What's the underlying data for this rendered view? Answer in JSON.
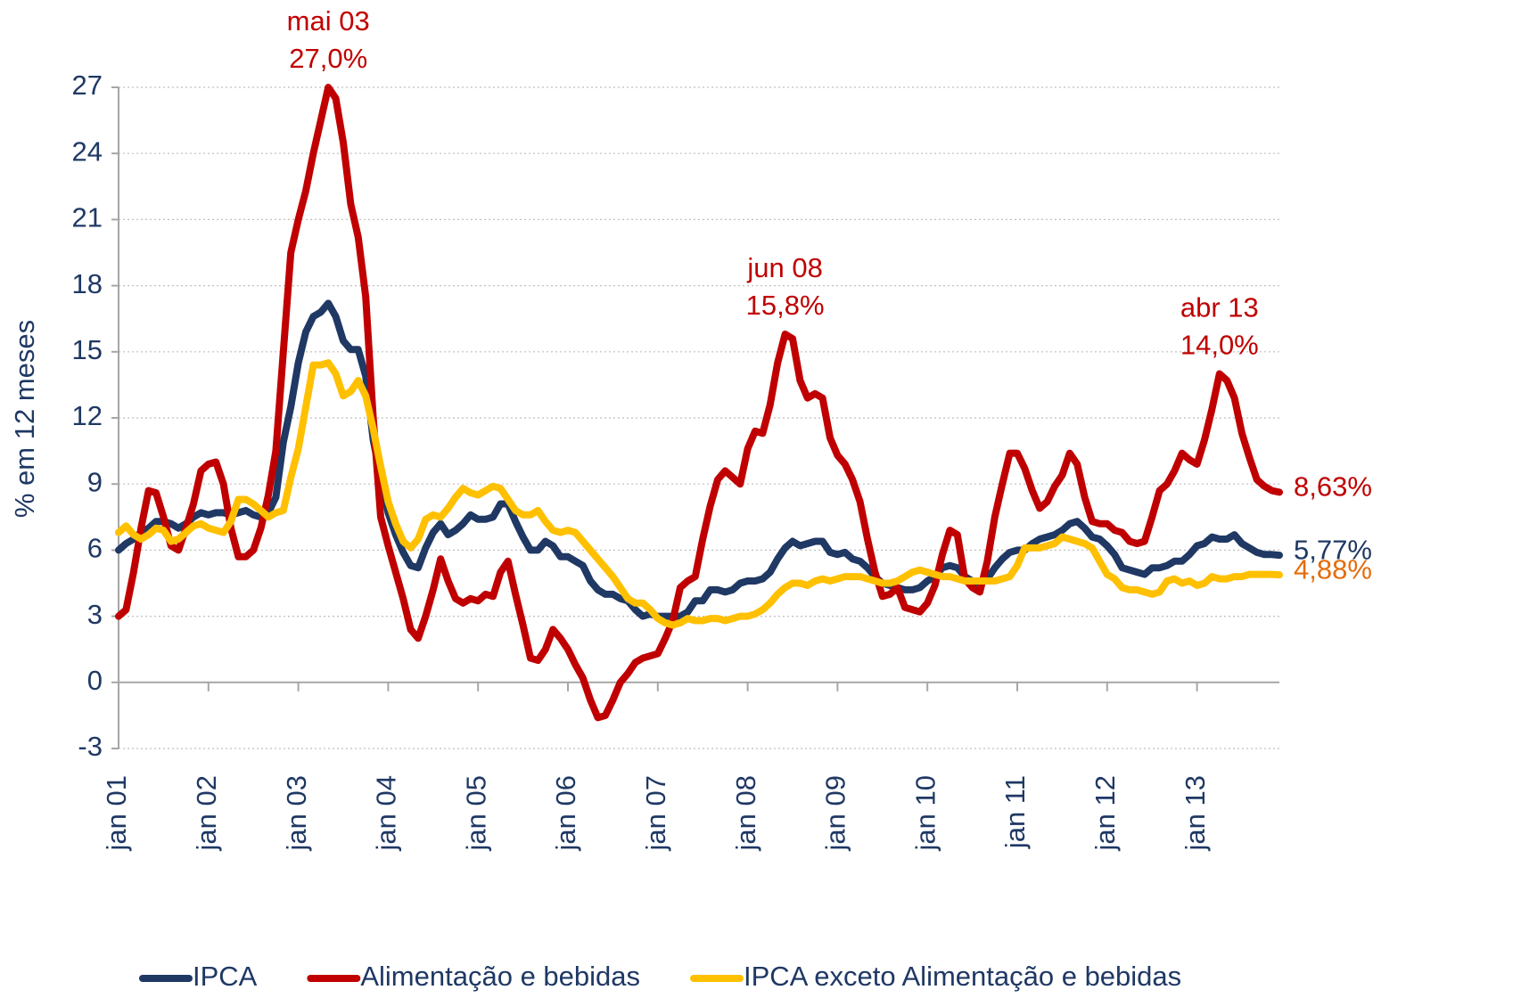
{
  "chart_data": {
    "type": "line",
    "ylabel": "% em 12 meses",
    "ylim": [
      -3,
      27
    ],
    "yticks": [
      -3,
      0,
      3,
      6,
      9,
      12,
      15,
      18,
      21,
      24,
      27
    ],
    "grid": true,
    "legend": "bottom",
    "categories": [
      "jan 01",
      null,
      null,
      null,
      null,
      null,
      null,
      null,
      null,
      null,
      null,
      null,
      "jan 02",
      null,
      null,
      null,
      null,
      null,
      null,
      null,
      null,
      null,
      null,
      null,
      "jan 03",
      null,
      null,
      null,
      null,
      null,
      null,
      null,
      null,
      null,
      null,
      null,
      "jan 04",
      null,
      null,
      null,
      null,
      null,
      null,
      null,
      null,
      null,
      null,
      null,
      "jan 05",
      null,
      null,
      null,
      null,
      null,
      null,
      null,
      null,
      null,
      null,
      null,
      "jan 06",
      null,
      null,
      null,
      null,
      null,
      null,
      null,
      null,
      null,
      null,
      null,
      "jan 07",
      null,
      null,
      null,
      null,
      null,
      null,
      null,
      null,
      null,
      null,
      null,
      "jan 08",
      null,
      null,
      null,
      null,
      null,
      null,
      null,
      null,
      null,
      null,
      null,
      "jan 09",
      null,
      null,
      null,
      null,
      null,
      null,
      null,
      null,
      null,
      null,
      null,
      "jan 10",
      null,
      null,
      null,
      null,
      null,
      null,
      null,
      null,
      null,
      null,
      null,
      "jan 11",
      null,
      null,
      null,
      null,
      null,
      null,
      null,
      null,
      null,
      null,
      null,
      "jan 12",
      null,
      null,
      null,
      null,
      null,
      null,
      null,
      null,
      null,
      null,
      null,
      "jan 13",
      null,
      null,
      null,
      null,
      null,
      null,
      null,
      null,
      null,
      null,
      null
    ],
    "series": [
      {
        "name": "IPCA",
        "color": "#1f3864",
        "values": [
          6.0,
          6.3,
          6.5,
          6.8,
          7.0,
          7.3,
          7.3,
          7.2,
          7.0,
          7.2,
          7.5,
          7.7,
          7.6,
          7.7,
          7.7,
          7.6,
          7.7,
          7.8,
          7.6,
          7.5,
          7.7,
          8.4,
          10.9,
          12.5,
          14.5,
          15.9,
          16.6,
          16.8,
          17.2,
          16.6,
          15.5,
          15.1,
          15.1,
          13.9,
          11.0,
          9.3,
          7.7,
          6.7,
          5.9,
          5.3,
          5.2,
          6.1,
          6.8,
          7.2,
          6.7,
          6.9,
          7.2,
          7.6,
          7.4,
          7.4,
          7.5,
          8.1,
          8.1,
          7.3,
          6.6,
          6.0,
          6.0,
          6.4,
          6.2,
          5.7,
          5.7,
          5.5,
          5.3,
          4.6,
          4.2,
          4.0,
          4.0,
          3.8,
          3.7,
          3.3,
          3.0,
          3.1,
          3.0,
          3.0,
          3.0,
          3.0,
          3.2,
          3.7,
          3.7,
          4.2,
          4.2,
          4.1,
          4.2,
          4.5,
          4.6,
          4.6,
          4.7,
          5.0,
          5.6,
          6.1,
          6.4,
          6.2,
          6.3,
          6.4,
          6.4,
          5.9,
          5.8,
          5.9,
          5.6,
          5.5,
          5.2,
          4.8,
          4.5,
          4.4,
          4.3,
          4.2,
          4.2,
          4.3,
          4.6,
          4.8,
          5.2,
          5.3,
          5.2,
          4.8,
          4.6,
          4.5,
          4.7,
          5.2,
          5.6,
          5.9,
          6.0,
          6.0,
          6.3,
          6.5,
          6.6,
          6.7,
          6.9,
          7.2,
          7.3,
          7.0,
          6.6,
          6.5,
          6.2,
          5.8,
          5.2,
          5.1,
          5.0,
          4.9,
          5.2,
          5.2,
          5.3,
          5.5,
          5.5,
          5.8,
          6.2,
          6.3,
          6.6,
          6.5,
          6.5,
          6.7,
          6.3,
          6.1,
          5.9,
          5.8,
          5.8,
          5.77
        ],
        "value_labels": [
          null,
          null,
          null,
          null,
          null,
          null,
          null,
          null,
          null,
          null,
          null,
          null,
          null,
          null,
          null,
          null,
          null,
          null,
          null,
          null,
          null,
          null,
          null,
          null,
          null,
          null,
          null,
          null,
          null,
          null,
          null,
          null,
          null,
          null,
          null,
          null,
          null,
          null,
          null,
          null,
          null,
          null,
          null,
          null,
          null,
          null,
          null,
          null,
          null,
          null,
          null,
          null,
          null,
          null,
          null,
          null,
          null,
          null,
          null,
          null,
          null,
          null,
          null,
          null,
          null,
          null,
          null,
          null,
          null,
          null,
          null,
          null,
          null,
          null,
          null,
          null,
          null,
          null,
          null,
          null,
          null,
          null,
          null,
          null,
          null,
          null,
          null,
          null,
          null,
          null,
          null,
          null,
          null,
          null,
          null,
          null,
          null,
          null,
          null,
          null,
          null,
          null,
          null,
          null,
          null,
          null,
          null,
          null,
          null,
          null,
          null,
          null,
          null,
          null,
          null,
          null,
          null,
          null,
          null,
          null,
          null,
          null,
          null,
          null,
          null,
          null,
          null,
          null,
          null,
          null,
          null,
          null,
          null,
          null,
          null,
          null,
          null,
          null,
          null,
          null,
          null,
          null,
          null,
          null,
          null,
          null,
          null,
          null,
          null,
          null,
          null,
          null,
          null,
          null,
          null,
          "5,77%"
        ]
      },
      {
        "name": "Alimentação e bebidas",
        "color": "#c00000",
        "values": [
          3.0,
          3.3,
          5.0,
          7.0,
          8.7,
          8.6,
          7.5,
          6.2,
          6.0,
          7.0,
          8.1,
          9.6,
          9.9,
          10.0,
          9.0,
          7.0,
          5.7,
          5.7,
          6.0,
          7.0,
          8.5,
          10.5,
          15.0,
          19.5,
          21.0,
          22.3,
          24.0,
          25.5,
          27.0,
          26.5,
          24.5,
          21.7,
          20.2,
          17.5,
          12.0,
          7.5,
          6.2,
          5.0,
          3.8,
          2.4,
          2.0,
          3.0,
          4.2,
          5.6,
          4.6,
          3.8,
          3.6,
          3.8,
          3.7,
          4.0,
          3.9,
          5.0,
          5.5,
          4.0,
          2.6,
          1.1,
          1.0,
          1.5,
          2.4,
          2.0,
          1.5,
          0.8,
          0.2,
          -0.8,
          -1.6,
          -1.5,
          -0.8,
          0.0,
          0.4,
          0.9,
          1.1,
          1.2,
          1.3,
          2.0,
          2.8,
          4.3,
          4.6,
          4.8,
          6.5,
          8.0,
          9.2,
          9.6,
          9.3,
          9.0,
          10.6,
          11.4,
          11.3,
          12.6,
          14.5,
          15.8,
          15.6,
          13.7,
          12.9,
          13.1,
          12.9,
          11.1,
          10.3,
          9.9,
          9.2,
          8.2,
          6.5,
          5.0,
          3.9,
          4.0,
          4.3,
          3.4,
          3.3,
          3.2,
          3.6,
          4.4,
          5.8,
          6.9,
          6.7,
          4.7,
          4.3,
          4.1,
          5.5,
          7.5,
          9.0,
          10.4,
          10.4,
          9.7,
          8.7,
          7.9,
          8.2,
          8.9,
          9.4,
          10.4,
          9.9,
          8.4,
          7.3,
          7.2,
          7.2,
          6.9,
          6.8,
          6.4,
          6.3,
          6.4,
          7.5,
          8.7,
          9.0,
          9.6,
          10.4,
          10.1,
          9.9,
          11.0,
          12.4,
          14.0,
          13.7,
          12.9,
          11.3,
          10.2,
          9.2,
          8.9,
          8.7,
          8.63
        ],
        "point_labels": [
          null,
          null,
          null,
          null,
          null,
          null,
          null,
          null,
          null,
          null,
          null,
          null,
          null,
          null,
          null,
          null,
          null,
          null,
          null,
          null,
          null,
          null,
          null,
          null,
          null,
          null,
          null,
          null,
          "mai 03",
          null,
          null,
          null,
          null,
          null,
          null,
          null,
          null,
          null,
          null,
          null,
          null,
          null,
          null,
          null,
          null,
          null,
          null,
          null,
          null,
          null,
          null,
          null,
          null,
          null,
          null,
          null,
          null,
          null,
          null,
          null,
          null,
          null,
          null,
          null,
          null,
          null,
          null,
          null,
          null,
          null,
          null,
          null,
          null,
          null,
          null,
          null,
          null,
          null,
          null,
          null,
          null,
          null,
          null,
          null,
          null,
          null,
          null,
          null,
          null,
          "jun 08",
          null,
          null,
          null,
          null,
          null,
          null,
          null,
          null,
          null,
          null,
          null,
          null,
          null,
          null,
          null,
          null,
          null,
          null,
          null,
          null,
          null,
          null,
          null,
          null,
          null,
          null,
          null,
          null,
          null,
          null,
          null,
          null,
          null,
          null,
          null,
          null,
          null,
          null,
          null,
          null,
          null,
          null,
          null,
          null,
          null,
          null,
          null,
          null,
          null,
          null,
          null,
          null,
          null,
          null,
          null,
          null,
          null,
          "abr 13",
          null,
          null,
          null,
          null,
          null,
          null,
          null,
          null
        ],
        "value_labels": [
          null,
          null,
          null,
          null,
          null,
          null,
          null,
          null,
          null,
          null,
          null,
          null,
          null,
          null,
          null,
          null,
          null,
          null,
          null,
          null,
          null,
          null,
          null,
          null,
          null,
          null,
          null,
          null,
          "27,0%",
          null,
          null,
          null,
          null,
          null,
          null,
          null,
          null,
          null,
          null,
          null,
          null,
          null,
          null,
          null,
          null,
          null,
          null,
          null,
          null,
          null,
          null,
          null,
          null,
          null,
          null,
          null,
          null,
          null,
          null,
          null,
          null,
          null,
          null,
          null,
          null,
          null,
          null,
          null,
          null,
          null,
          null,
          null,
          null,
          null,
          null,
          null,
          null,
          null,
          null,
          null,
          null,
          null,
          null,
          null,
          null,
          null,
          null,
          null,
          null,
          "15,8%",
          null,
          null,
          null,
          null,
          null,
          null,
          null,
          null,
          null,
          null,
          null,
          null,
          null,
          null,
          null,
          null,
          null,
          null,
          null,
          null,
          null,
          null,
          null,
          null,
          null,
          null,
          null,
          null,
          null,
          null,
          null,
          null,
          null,
          null,
          null,
          null,
          null,
          null,
          null,
          null,
          null,
          null,
          null,
          null,
          null,
          null,
          null,
          null,
          null,
          null,
          null,
          null,
          null,
          null,
          null,
          null,
          null,
          "14,0%",
          null,
          null,
          null,
          null,
          null,
          null,
          null,
          "8,63%"
        ]
      },
      {
        "name": "IPCA exceto Alimentação e bebidas",
        "color": "#ffc000",
        "label_color": "#e46c0a",
        "values": [
          6.8,
          7.1,
          6.7,
          6.5,
          6.7,
          7.0,
          6.9,
          6.4,
          6.5,
          6.8,
          7.1,
          7.2,
          7.0,
          6.9,
          6.8,
          7.3,
          8.3,
          8.3,
          8.1,
          7.8,
          7.5,
          7.7,
          7.8,
          9.3,
          10.6,
          12.5,
          14.4,
          14.4,
          14.5,
          14.0,
          13.0,
          13.2,
          13.7,
          13.0,
          11.5,
          9.8,
          8.2,
          7.2,
          6.4,
          6.1,
          6.5,
          7.4,
          7.6,
          7.5,
          7.9,
          8.4,
          8.8,
          8.6,
          8.5,
          8.7,
          8.9,
          8.8,
          8.3,
          7.8,
          7.6,
          7.6,
          7.8,
          7.3,
          6.9,
          6.8,
          6.9,
          6.8,
          6.4,
          6.0,
          5.6,
          5.2,
          4.8,
          4.3,
          3.8,
          3.6,
          3.6,
          3.3,
          2.9,
          2.7,
          2.6,
          2.7,
          2.9,
          2.8,
          2.8,
          2.9,
          2.9,
          2.8,
          2.9,
          3.0,
          3.0,
          3.1,
          3.3,
          3.6,
          4.0,
          4.3,
          4.5,
          4.5,
          4.4,
          4.6,
          4.7,
          4.6,
          4.7,
          4.8,
          4.8,
          4.8,
          4.7,
          4.6,
          4.5,
          4.5,
          4.6,
          4.8,
          5.0,
          5.1,
          5.0,
          4.9,
          4.8,
          4.8,
          4.7,
          4.6,
          4.6,
          4.6,
          4.6,
          4.6,
          4.7,
          4.8,
          5.3,
          6.1,
          6.1,
          6.1,
          6.2,
          6.3,
          6.6,
          6.5,
          6.4,
          6.3,
          6.1,
          5.5,
          4.9,
          4.7,
          4.3,
          4.2,
          4.2,
          4.1,
          4.0,
          4.1,
          4.6,
          4.7,
          4.5,
          4.6,
          4.4,
          4.5,
          4.8,
          4.7,
          4.7,
          4.8,
          4.8,
          4.9,
          4.9,
          4.9,
          4.9,
          4.88
        ],
        "value_labels": [
          null,
          null,
          null,
          null,
          null,
          null,
          null,
          null,
          null,
          null,
          null,
          null,
          null,
          null,
          null,
          null,
          null,
          null,
          null,
          null,
          null,
          null,
          null,
          null,
          null,
          null,
          null,
          null,
          null,
          null,
          null,
          null,
          null,
          null,
          null,
          null,
          null,
          null,
          null,
          null,
          null,
          null,
          null,
          null,
          null,
          null,
          null,
          null,
          null,
          null,
          null,
          null,
          null,
          null,
          null,
          null,
          null,
          null,
          null,
          null,
          null,
          null,
          null,
          null,
          null,
          null,
          null,
          null,
          null,
          null,
          null,
          null,
          null,
          null,
          null,
          null,
          null,
          null,
          null,
          null,
          null,
          null,
          null,
          null,
          null,
          null,
          null,
          null,
          null,
          null,
          null,
          null,
          null,
          null,
          null,
          null,
          null,
          null,
          null,
          null,
          null,
          null,
          null,
          null,
          null,
          null,
          null,
          null,
          null,
          null,
          null,
          null,
          null,
          null,
          null,
          null,
          null,
          null,
          null,
          null,
          null,
          null,
          null,
          null,
          null,
          null,
          null,
          null,
          null,
          null,
          null,
          null,
          null,
          null,
          null,
          null,
          null,
          null,
          null,
          null,
          null,
          null,
          null,
          null,
          null,
          null,
          null,
          null,
          null,
          null,
          null,
          null,
          null,
          null,
          null,
          "4,88%"
        ]
      }
    ]
  }
}
